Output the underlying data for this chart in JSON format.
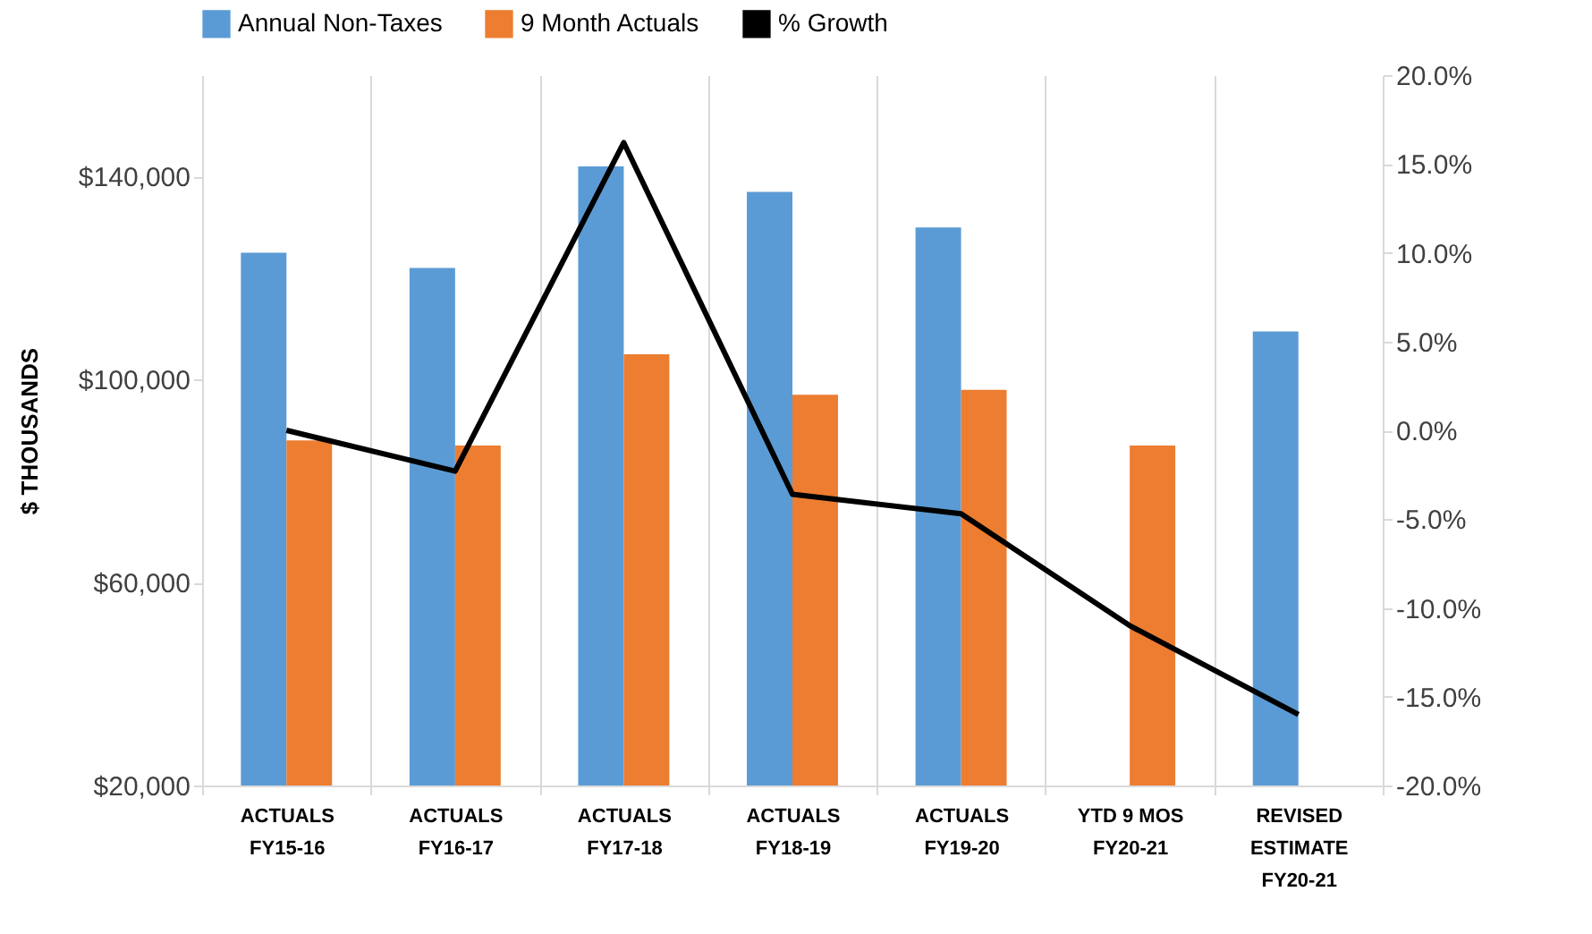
{
  "chart_data": {
    "type": "bar",
    "categories": [
      "ACTUALS\nFY15-16",
      "ACTUALS\nFY16-17",
      "ACTUALS\nFY17-18",
      "ACTUALS\nFY18-19",
      "ACTUALS\nFY19-20",
      "YTD 9 MOS\nFY20-21",
      "REVISED\nESTIMATE\nFY20-21"
    ],
    "ylabel": "$ THOUSANDS",
    "ylim": [
      20000,
      160000
    ],
    "yticks": [
      {
        "value": 20000,
        "label": "$20,000"
      },
      {
        "value": 60000,
        "label": "$60,000"
      },
      {
        "value": 100000,
        "label": "$100,000"
      },
      {
        "value": 140000,
        "label": "$140,000"
      }
    ],
    "y2lim": [
      -20,
      20
    ],
    "y2ticks": [
      {
        "value": -20,
        "label": "-20.0%"
      },
      {
        "value": -15,
        "label": "-15.0%"
      },
      {
        "value": -10,
        "label": "-10.0%"
      },
      {
        "value": -5,
        "label": "-5.0%"
      },
      {
        "value": 0,
        "label": "0.0%"
      },
      {
        "value": 5,
        "label": "5.0%"
      },
      {
        "value": 10,
        "label": "10.0%"
      },
      {
        "value": 15,
        "label": "15.0%"
      },
      {
        "value": 20,
        "label": "20.0%"
      }
    ],
    "series": [
      {
        "name": "Annual Non-Taxes",
        "color": "#5b9bd5",
        "values": [
          125000,
          122000,
          142000,
          137000,
          130000,
          null,
          109500
        ]
      },
      {
        "name": "9 Month Actuals",
        "color": "#ed7d31",
        "values": [
          88000,
          87000,
          105000,
          97000,
          98000,
          87000,
          null
        ]
      },
      {
        "name": "% Growth",
        "color": "#000000",
        "type": "line",
        "axis": "y2",
        "values": [
          0.0,
          -2.3,
          16.2,
          -3.6,
          -4.7,
          -11.0,
          -16.0
        ]
      }
    ],
    "grid": "x",
    "legend": "top",
    "marker": "none"
  }
}
